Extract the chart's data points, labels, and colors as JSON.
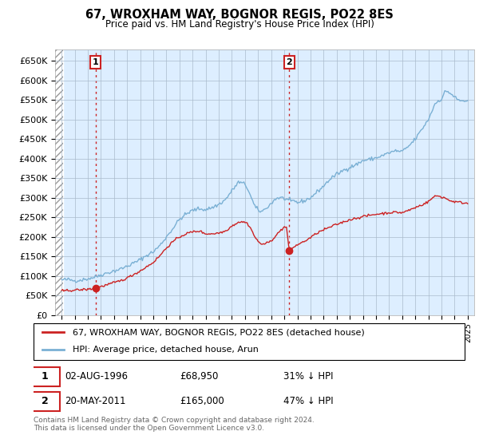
{
  "title": "67, WROXHAM WAY, BOGNOR REGIS, PO22 8ES",
  "subtitle": "Price paid vs. HM Land Registry's House Price Index (HPI)",
  "ylim": [
    0,
    680000
  ],
  "yticks": [
    0,
    50000,
    100000,
    150000,
    200000,
    250000,
    300000,
    350000,
    400000,
    450000,
    500000,
    550000,
    600000,
    650000
  ],
  "ytick_labels": [
    "£0",
    "£50K",
    "£100K",
    "£150K",
    "£200K",
    "£250K",
    "£300K",
    "£350K",
    "£400K",
    "£450K",
    "£500K",
    "£550K",
    "£600K",
    "£650K"
  ],
  "hpi_color": "#7ab0d4",
  "price_color": "#cc2222",
  "annotation_box_color": "#cc2222",
  "background_color": "#ffffff",
  "plot_bg_color": "#ddeeff",
  "grid_color": "#aabbcc",
  "hatch_color": "#bbbbbb",
  "sale1_date": 1996.58,
  "sale1_price": 68950,
  "sale2_date": 2011.38,
  "sale2_price": 165000,
  "legend_label_price": "67, WROXHAM WAY, BOGNOR REGIS, PO22 8ES (detached house)",
  "legend_label_hpi": "HPI: Average price, detached house, Arun",
  "footnote": "Contains HM Land Registry data © Crown copyright and database right 2024.\nThis data is licensed under the Open Government Licence v3.0.",
  "xlim_start": 1993.5,
  "xlim_end": 2025.5,
  "hatch_end": 1994.08,
  "ann1_date_str": "02-AUG-1996",
  "ann1_price_str": "£68,950",
  "ann1_pct_str": "31% ↓ HPI",
  "ann2_date_str": "20-MAY-2011",
  "ann2_price_str": "£165,000",
  "ann2_pct_str": "47% ↓ HPI"
}
